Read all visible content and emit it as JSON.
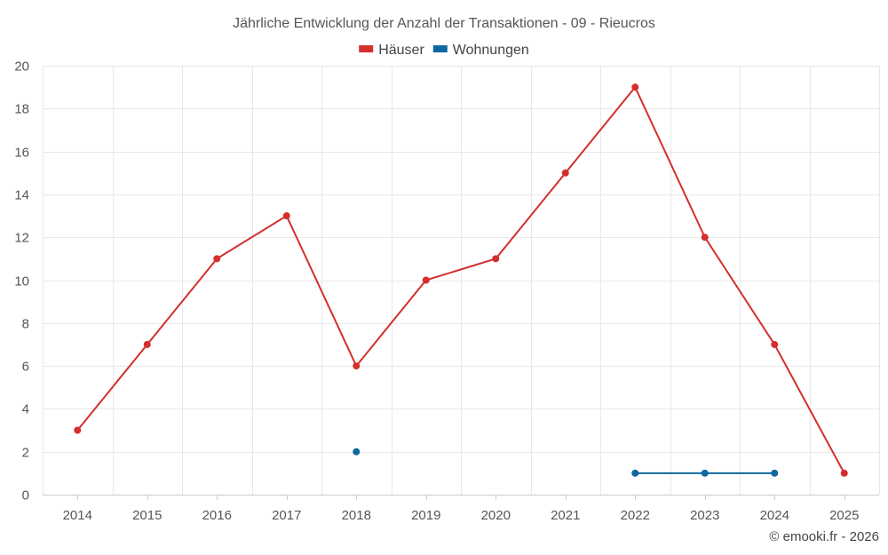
{
  "chart_data": {
    "type": "line",
    "title": "Jährliche Entwicklung der Anzahl der Transaktionen - 09 - Rieucros",
    "categories": [
      "2014",
      "2015",
      "2016",
      "2017",
      "2018",
      "2019",
      "2020",
      "2021",
      "2022",
      "2023",
      "2024",
      "2025"
    ],
    "series": [
      {
        "name": "Häuser",
        "color": "#d32f2f",
        "values": [
          3,
          7,
          11,
          13,
          6,
          10,
          11,
          15,
          19,
          12,
          7,
          1
        ]
      },
      {
        "name": "Wohnungen",
        "color": "#0f67a0",
        "values": [
          null,
          null,
          null,
          null,
          2,
          null,
          null,
          null,
          1,
          1,
          1,
          null
        ]
      }
    ],
    "ylim": [
      0,
      20
    ],
    "yticks": [
      "0",
      "2",
      "4",
      "6",
      "8",
      "10",
      "12",
      "14",
      "16",
      "18",
      "20"
    ],
    "xlabel": "",
    "ylabel": "",
    "grid": true,
    "legend_position": "top-center"
  },
  "credit": "© emooki.fr - 2026"
}
